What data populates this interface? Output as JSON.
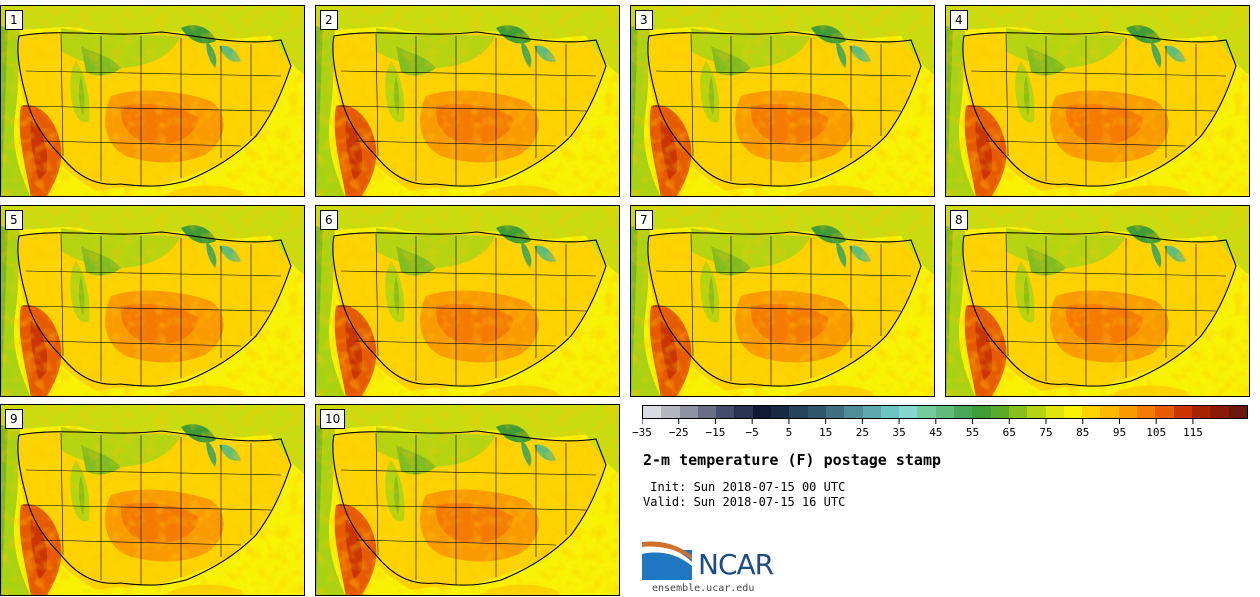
{
  "panels": [
    "1",
    "2",
    "3",
    "4",
    "5",
    "6",
    "7",
    "8",
    "9",
    "10"
  ],
  "colorbar": {
    "colors": [
      "#d9dbe0",
      "#b4b7c2",
      "#8e92a3",
      "#686e86",
      "#444d69",
      "#2a3350",
      "#111a33",
      "#172a42",
      "#25445a",
      "#31566b",
      "#40707f",
      "#4f8d97",
      "#5fa9af",
      "#6ec4c2",
      "#84d8cd",
      "#74cc9d",
      "#5fbc7c",
      "#4aa75a",
      "#3f9c36",
      "#5bab2b",
      "#88bf1c",
      "#b4d412",
      "#dde30b",
      "#f8f204",
      "#fdd400",
      "#fdb800",
      "#f99a00",
      "#f47a00",
      "#e65a00",
      "#cb3500",
      "#a82400",
      "#8a1b08",
      "#6a170d"
    ],
    "tick_labels": [
      "−35",
      "−25",
      "−15",
      "−5",
      "5",
      "15",
      "25",
      "35",
      "45",
      "55",
      "65",
      "75",
      "85",
      "95",
      "105",
      "115"
    ]
  },
  "title": "2-m temperature (F) postage stamp",
  "init_line": " Init: Sun 2018-07-15 00 UTC",
  "valid_line": "Valid: Sun 2018-07-15 16 UTC",
  "logo": {
    "word": "NCAR",
    "url": "ensemble.ucar.edu"
  }
}
